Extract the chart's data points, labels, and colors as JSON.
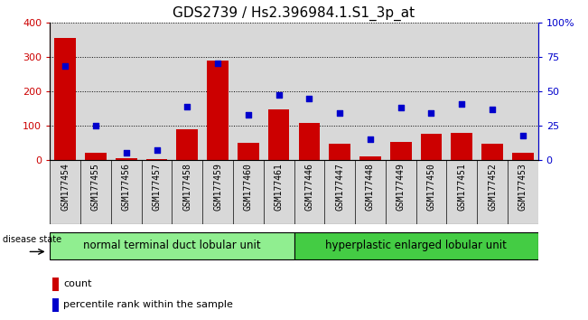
{
  "title": "GDS2739 / Hs2.396984.1.S1_3p_at",
  "samples": [
    "GSM177454",
    "GSM177455",
    "GSM177456",
    "GSM177457",
    "GSM177458",
    "GSM177459",
    "GSM177460",
    "GSM177461",
    "GSM177446",
    "GSM177447",
    "GSM177448",
    "GSM177449",
    "GSM177450",
    "GSM177451",
    "GSM177452",
    "GSM177453"
  ],
  "counts": [
    355,
    22,
    5,
    3,
    90,
    290,
    50,
    148,
    108,
    47,
    10,
    52,
    75,
    78,
    46,
    20
  ],
  "percentiles": [
    68,
    25,
    5,
    7,
    39,
    70,
    33,
    47,
    45,
    34,
    15,
    38,
    34,
    41,
    37,
    18
  ],
  "group1_label": "normal terminal duct lobular unit",
  "group1_count": 8,
  "group2_label": "hyperplastic enlarged lobular unit",
  "group2_count": 8,
  "disease_state_label": "disease state",
  "legend_count": "count",
  "legend_percentile": "percentile rank within the sample",
  "bar_color": "#cc0000",
  "dot_color": "#0000cc",
  "group1_color": "#90ee90",
  "group2_color": "#44cc44",
  "col_bg_color": "#d8d8d8",
  "ylim_left": [
    0,
    400
  ],
  "ylim_right": [
    0,
    100
  ],
  "yticks_left": [
    0,
    100,
    200,
    300,
    400
  ],
  "yticks_right": [
    0,
    25,
    50,
    75,
    100
  ],
  "title_fontsize": 11,
  "axis_fontsize": 8.5,
  "tick_fontsize": 8,
  "label_fontsize": 7
}
